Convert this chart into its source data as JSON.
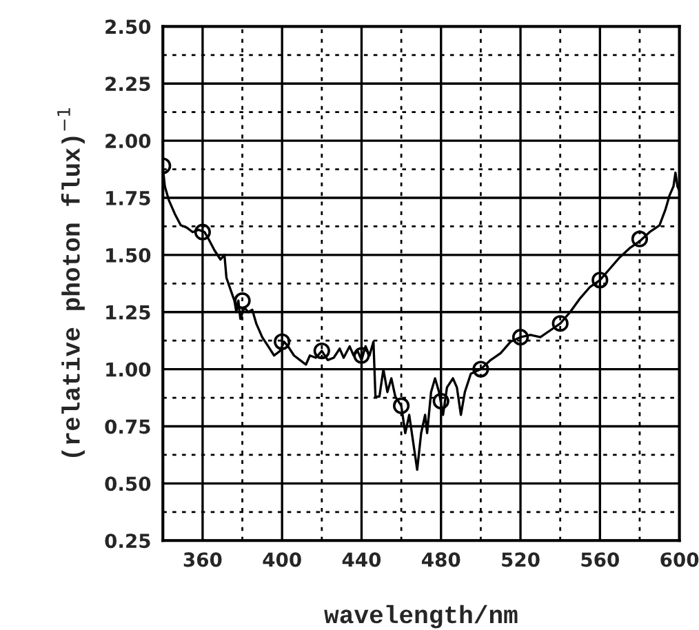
{
  "chart_data": {
    "type": "line",
    "xlabel": "wavelength/nm",
    "ylabel": "(relative photon flux)$^{−1}$",
    "xlim": [
      340,
      600
    ],
    "ylim": [
      0.25,
      2.5
    ],
    "xticks": [
      360,
      {
        "value": 380,
        "label": null
      },
      400,
      {
        "value": 420,
        "label": null
      },
      440,
      {
        "value": 460,
        "label": null
      },
      480,
      {
        "value": 500,
        "label": null
      },
      520,
      {
        "value": 540,
        "label": null
      },
      560,
      {
        "value": 580,
        "label": null
      },
      600
    ],
    "yticks": [
      {
        "value": 0.25,
        "label": "0.25"
      },
      {
        "value": 0.375,
        "label": null
      },
      {
        "value": 0.5,
        "label": "0.50"
      },
      {
        "value": 0.625,
        "label": null
      },
      {
        "value": 0.75,
        "label": "0.75"
      },
      {
        "value": 0.875,
        "label": null
      },
      {
        "value": 1.0,
        "label": "1.00"
      },
      {
        "value": 1.125,
        "label": null
      },
      {
        "value": 1.25,
        "label": "1.25"
      },
      {
        "value": 1.375,
        "label": null
      },
      {
        "value": 1.5,
        "label": "1.50"
      },
      {
        "value": 1.625,
        "label": null
      },
      {
        "value": 1.75,
        "label": "1.75"
      },
      {
        "value": 1.875,
        "label": null
      },
      {
        "value": 2.0,
        "label": "2.00"
      },
      {
        "value": 2.125,
        "label": null
      },
      {
        "value": 2.25,
        "label": "2.25"
      },
      {
        "value": 2.375,
        "label": null
      },
      {
        "value": 2.5,
        "label": "2.50"
      }
    ],
    "grid": true,
    "series": [
      {
        "color": "#000000",
        "marker": "none",
        "line_style": "solid",
        "x": [
          340,
          341,
          343,
          346,
          349,
          352,
          355,
          358,
          361,
          363,
          366,
          369,
          371,
          372,
          374,
          376,
          377,
          378,
          379,
          381,
          383,
          385,
          387,
          390,
          393,
          396,
          399,
          401,
          403,
          406,
          409,
          412,
          414,
          417,
          420,
          423,
          426,
          429,
          431,
          434,
          436,
          438,
          440,
          442,
          444,
          446,
          447,
          449,
          451,
          453,
          455,
          457,
          460,
          462,
          464,
          466,
          468,
          470,
          472,
          473,
          475,
          477,
          479,
          481,
          483,
          486,
          488,
          490,
          492,
          495,
          500,
          505,
          510,
          515,
          520,
          525,
          530,
          535,
          540,
          545,
          550,
          555,
          560,
          565,
          570,
          575,
          580,
          585,
          590,
          593,
          595,
          597,
          598,
          599,
          600
        ],
        "values": [
          1.88,
          1.8,
          1.74,
          1.68,
          1.63,
          1.62,
          1.6,
          1.61,
          1.6,
          1.57,
          1.52,
          1.48,
          1.5,
          1.4,
          1.35,
          1.3,
          1.25,
          1.3,
          1.22,
          1.27,
          1.25,
          1.26,
          1.2,
          1.14,
          1.1,
          1.06,
          1.08,
          1.12,
          1.1,
          1.06,
          1.04,
          1.02,
          1.06,
          1.05,
          1.08,
          1.04,
          1.05,
          1.09,
          1.05,
          1.1,
          1.06,
          1.08,
          1.04,
          1.1,
          1.06,
          1.12,
          0.88,
          0.88,
          1.0,
          0.9,
          0.96,
          0.88,
          0.84,
          0.72,
          0.8,
          0.68,
          0.56,
          0.72,
          0.8,
          0.72,
          0.9,
          0.96,
          0.9,
          0.8,
          0.92,
          0.96,
          0.92,
          0.8,
          0.9,
          0.98,
          1.0,
          1.04,
          1.07,
          1.12,
          1.14,
          1.15,
          1.14,
          1.17,
          1.2,
          1.25,
          1.31,
          1.36,
          1.39,
          1.44,
          1.49,
          1.53,
          1.56,
          1.6,
          1.63,
          1.7,
          1.76,
          1.8,
          1.86,
          1.8,
          1.78
        ]
      },
      {
        "type": "scatter",
        "color": "#000000",
        "marker": "circle",
        "x": [
          340,
          360,
          380,
          400,
          420,
          440,
          460,
          480,
          500,
          520,
          540,
          560,
          580
        ],
        "values": [
          1.89,
          1.6,
          1.3,
          1.12,
          1.08,
          1.06,
          0.84,
          0.86,
          1.0,
          1.14,
          1.2,
          1.39,
          1.57
        ]
      }
    ]
  }
}
